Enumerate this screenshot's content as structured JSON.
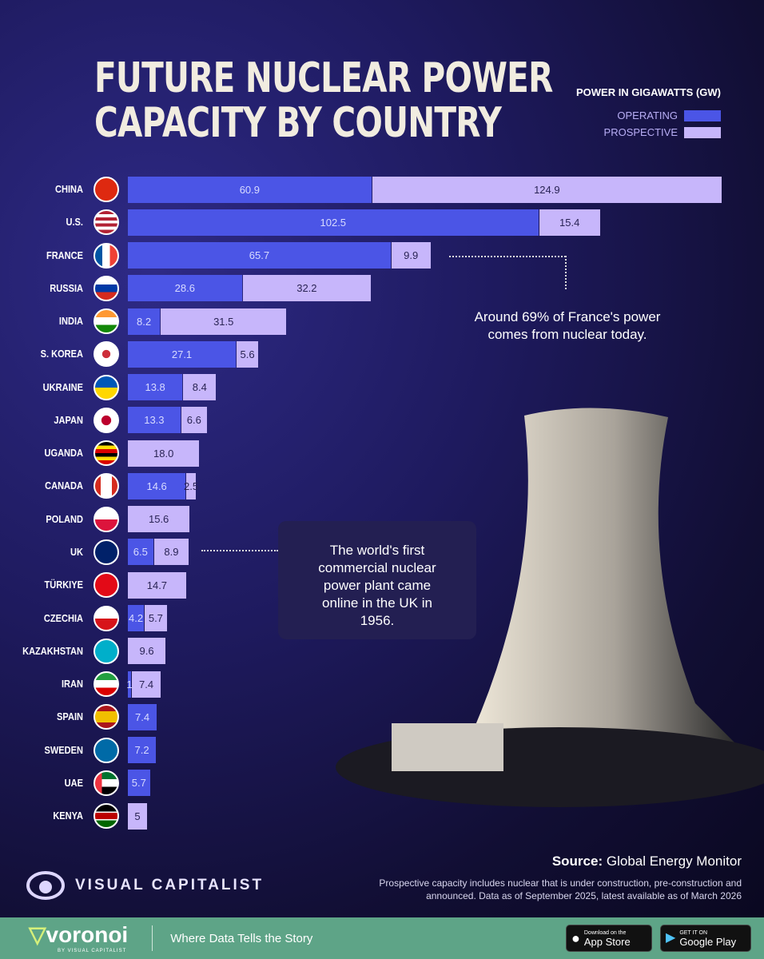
{
  "title_lines": [
    "FUTURE NUCLEAR POWER",
    "CAPACITY BY COUNTRY"
  ],
  "legend": {
    "heading": "POWER IN GIGAWATTS (GW)",
    "operating": "OPERATING",
    "prospective": "PROSPECTIVE"
  },
  "colors": {
    "operating": "#4b55e6",
    "prospective": "#c7b6fb",
    "background": "#1e1a5e",
    "footer": "#5ea487"
  },
  "chart_data": {
    "type": "bar",
    "orientation": "horizontal",
    "stacked": true,
    "title": "FUTURE NUCLEAR POWER CAPACITY BY COUNTRY",
    "unit": "Power in gigawatts (GW)",
    "categories": [
      "CHINA",
      "U.S.",
      "FRANCE",
      "RUSSIA",
      "INDIA",
      "S. KOREA",
      "UKRAINE",
      "JAPAN",
      "UGANDA",
      "CANADA",
      "POLAND",
      "UK",
      "TÜRKIYE",
      "CZECHIA",
      "KAZAKHSTAN",
      "IRAN",
      "SPAIN",
      "SWEDEN",
      "UAE",
      "KENYA"
    ],
    "series": [
      {
        "name": "OPERATING",
        "values": [
          60.9,
          102.5,
          65.7,
          28.6,
          8.2,
          27.1,
          13.8,
          13.3,
          null,
          14.6,
          null,
          6.5,
          null,
          4.2,
          null,
          1,
          7.4,
          7.2,
          5.7,
          null
        ]
      },
      {
        "name": "PROSPECTIVE",
        "values": [
          124.9,
          15.4,
          9.9,
          32.2,
          31.5,
          5.6,
          8.4,
          6.6,
          18.0,
          2.5,
          15.6,
          8.9,
          14.7,
          5.7,
          9.6,
          7.4,
          null,
          null,
          null,
          5
        ]
      }
    ],
    "legend": "top-right"
  },
  "annotations": {
    "france": "Around 69% of France's power comes from nuclear today.",
    "uk": "The world's first commercial nuclear power plant came online in the UK in 1956."
  },
  "source": {
    "label": "Source:",
    "value": "Global Energy Monitor"
  },
  "footnote": "Prospective capacity includes nuclear that is under construction, pre-construction and announced. Data as of September 2025, latest available as of March 2026",
  "brand": "VISUAL CAPITALIST",
  "footer": {
    "brand": "voronoi",
    "by": "BY VISUAL CAPITALIST",
    "tagline": "Where Data Tells the Story",
    "appstore_small": "Download on the",
    "appstore": "App Store",
    "gplay_small": "GET IT ON",
    "gplay": "Google Play"
  }
}
